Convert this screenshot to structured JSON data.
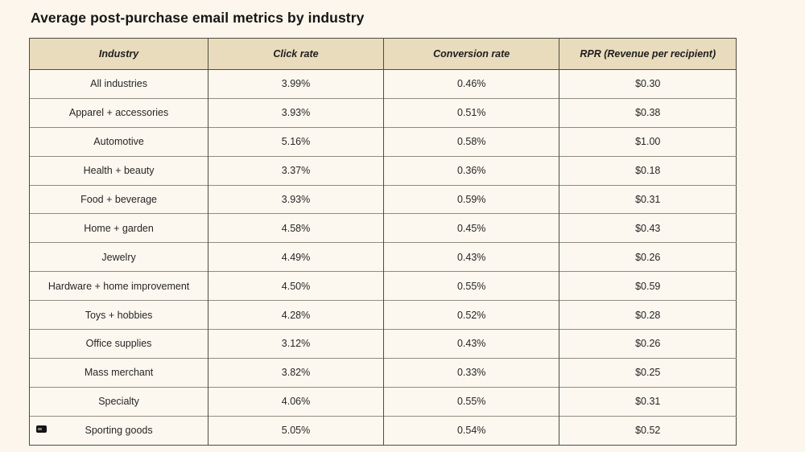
{
  "page": {
    "title": "Average post-purchase email metrics by industry"
  },
  "colors": {
    "page_background": "#fcf6ec",
    "header_background": "#e8dcbc",
    "cell_background": "#fdf8ef",
    "border_dark": "#4d4c42",
    "border_light": "#8e8d81",
    "text": "#262626"
  },
  "icons": {
    "cursor_artifact": "small-black-cursor-artifact"
  },
  "table": {
    "headers": [
      "Industry",
      "Click rate",
      "Conversion rate",
      "RPR (Revenue per recipient)"
    ],
    "rows": [
      {
        "industry": "All industries",
        "click_rate": "3.99%",
        "conversion_rate": "0.46%",
        "rpr": "$0.30"
      },
      {
        "industry": "Apparel + accessories",
        "click_rate": "3.93%",
        "conversion_rate": "0.51%",
        "rpr": "$0.38"
      },
      {
        "industry": "Automotive",
        "click_rate": "5.16%",
        "conversion_rate": "0.58%",
        "rpr": "$1.00"
      },
      {
        "industry": "Health + beauty",
        "click_rate": "3.37%",
        "conversion_rate": "0.36%",
        "rpr": "$0.18"
      },
      {
        "industry": "Food + beverage",
        "click_rate": "3.93%",
        "conversion_rate": "0.59%",
        "rpr": "$0.31"
      },
      {
        "industry": "Home + garden",
        "click_rate": "4.58%",
        "conversion_rate": "0.45%",
        "rpr": "$0.43"
      },
      {
        "industry": "Jewelry",
        "click_rate": "4.49%",
        "conversion_rate": "0.43%",
        "rpr": "$0.26"
      },
      {
        "industry": "Hardware + home improvement",
        "click_rate": "4.50%",
        "conversion_rate": "0.55%",
        "rpr": "$0.59"
      },
      {
        "industry": "Toys + hobbies",
        "click_rate": "4.28%",
        "conversion_rate": "0.52%",
        "rpr": "$0.28"
      },
      {
        "industry": "Office supplies",
        "click_rate": "3.12%",
        "conversion_rate": "0.43%",
        "rpr": "$0.26"
      },
      {
        "industry": "Mass merchant",
        "click_rate": "3.82%",
        "conversion_rate": "0.33%",
        "rpr": "$0.25"
      },
      {
        "industry": "Specialty",
        "click_rate": "4.06%",
        "conversion_rate": "0.55%",
        "rpr": "$0.31"
      },
      {
        "industry": "Sporting goods",
        "click_rate": "5.05%",
        "conversion_rate": "0.54%",
        "rpr": "$0.52"
      }
    ]
  },
  "chart_data": {
    "type": "table",
    "title": "Average post-purchase email metrics by industry",
    "columns": [
      "Industry",
      "Click rate",
      "Conversion rate",
      "RPR (Revenue per recipient)"
    ],
    "categories": [
      "All industries",
      "Apparel + accessories",
      "Automotive",
      "Health + beauty",
      "Food + beverage",
      "Home + garden",
      "Jewelry",
      "Hardware + home improvement",
      "Toys + hobbies",
      "Office supplies",
      "Mass merchant",
      "Specialty",
      "Sporting goods"
    ],
    "series": [
      {
        "name": "Click rate",
        "unit": "%",
        "values": [
          3.99,
          3.93,
          5.16,
          3.37,
          3.93,
          4.58,
          4.49,
          4.5,
          4.28,
          3.12,
          3.82,
          4.06,
          5.05
        ]
      },
      {
        "name": "Conversion rate",
        "unit": "%",
        "values": [
          0.46,
          0.51,
          0.58,
          0.36,
          0.59,
          0.45,
          0.43,
          0.55,
          0.52,
          0.43,
          0.33,
          0.55,
          0.54
        ]
      },
      {
        "name": "RPR (Revenue per recipient)",
        "unit": "$",
        "values": [
          0.3,
          0.38,
          1.0,
          0.18,
          0.31,
          0.43,
          0.26,
          0.59,
          0.28,
          0.26,
          0.25,
          0.31,
          0.52
        ]
      }
    ]
  }
}
